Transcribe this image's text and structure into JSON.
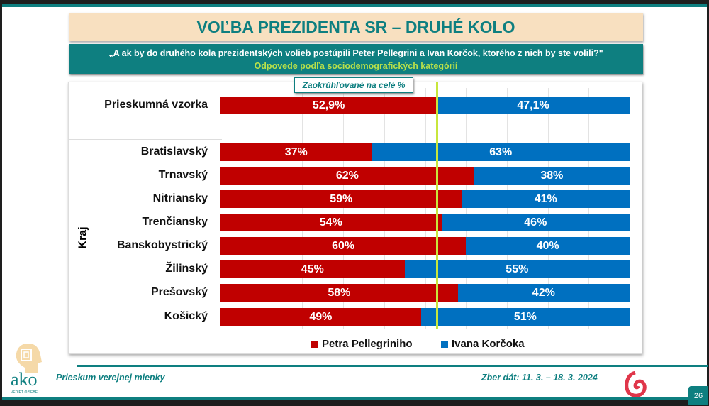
{
  "header": {
    "title": "VOĽBA PREZIDENTA SR – DRUHÉ KOLO",
    "question": "„A ak by do druhého kola prezidentských volieb postúpili Peter Pellegrini a Ivan Korčok, ktorého z nich by ste volili?\"",
    "subtitle": "Odpovede podľa sociodemografických kategórií"
  },
  "note": "Zaokrúhľované na celé %",
  "chart_data": {
    "type": "bar",
    "orientation": "horizontal",
    "stacked": true,
    "xlim": [
      0,
      100
    ],
    "grid": true,
    "group_label": "Kraj",
    "categories": [
      "Prieskumná vzorka",
      "Bratislavský",
      "Trnavský",
      "Nitriansky",
      "Trenčiansky",
      "Banskobystrický",
      "Žilinský",
      "Prešovský",
      "Košický"
    ],
    "series": [
      {
        "name": "Petra Pellegriniho",
        "color": "#c00000",
        "values": [
          52.9,
          37,
          62,
          59,
          54,
          60,
          45,
          58,
          49
        ],
        "labels": [
          "52,9%",
          "37%",
          "62%",
          "59%",
          "54%",
          "60%",
          "45%",
          "58%",
          "49%"
        ]
      },
      {
        "name": "Ivana Korčoka",
        "color": "#0070c0",
        "values": [
          47.1,
          63,
          38,
          41,
          46,
          40,
          55,
          42,
          51
        ],
        "labels": [
          "47,1%",
          "63%",
          "38%",
          "41%",
          "46%",
          "40%",
          "55%",
          "42%",
          "51%"
        ]
      }
    ],
    "reference_line": {
      "value": 52.9,
      "color": "#c8e63c"
    },
    "legend_position": "bottom"
  },
  "footer": {
    "survey": "Prieskum verejnej mienky",
    "date": "Zber dát: 11. 3. – 18. 3. 2024",
    "page": "26",
    "logo_text": "ako",
    "logo_tagline": "VEDIEŤ O SEBE"
  }
}
